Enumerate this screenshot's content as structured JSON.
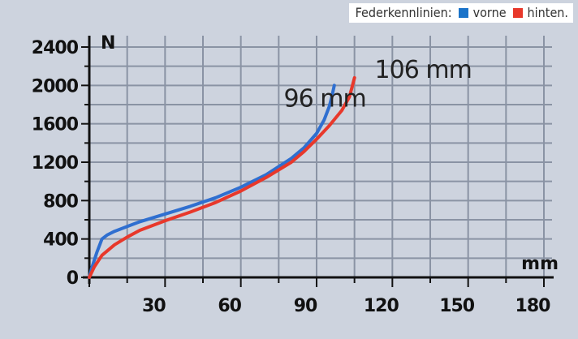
{
  "chart_data": {
    "type": "line",
    "title": "",
    "xlabel": "mm",
    "ylabel": "N",
    "xlim": [
      0,
      180
    ],
    "ylim": [
      0,
      2400
    ],
    "xticks": [
      30,
      60,
      90,
      120,
      150,
      180
    ],
    "yticks": [
      0,
      400,
      800,
      1200,
      1600,
      2000,
      2400
    ],
    "grid": true,
    "legend": {
      "position": "top-right",
      "title": "Federkennlinien:",
      "entries": [
        {
          "label": "vorne",
          "color": "#1a73c9"
        },
        {
          "label": "hinten.",
          "color": "#e8382b"
        }
      ]
    },
    "series": [
      {
        "name": "vorne",
        "color": "#2f6fd0",
        "points": [
          [
            0,
            0
          ],
          [
            1,
            100
          ],
          [
            3,
            260
          ],
          [
            5,
            400
          ],
          [
            7,
            440
          ],
          [
            10,
            480
          ],
          [
            15,
            530
          ],
          [
            20,
            580
          ],
          [
            30,
            660
          ],
          [
            40,
            740
          ],
          [
            50,
            830
          ],
          [
            60,
            940
          ],
          [
            70,
            1070
          ],
          [
            80,
            1240
          ],
          [
            85,
            1350
          ],
          [
            90,
            1500
          ],
          [
            93,
            1640
          ],
          [
            95,
            1780
          ],
          [
            96,
            1880
          ],
          [
            97,
            2000
          ]
        ]
      },
      {
        "name": "hinten.",
        "color": "#e8382b",
        "points": [
          [
            0,
            0
          ],
          [
            2,
            110
          ],
          [
            5,
            230
          ],
          [
            10,
            340
          ],
          [
            15,
            420
          ],
          [
            20,
            490
          ],
          [
            30,
            590
          ],
          [
            40,
            680
          ],
          [
            50,
            780
          ],
          [
            60,
            900
          ],
          [
            70,
            1040
          ],
          [
            80,
            1200
          ],
          [
            85,
            1310
          ],
          [
            90,
            1440
          ],
          [
            95,
            1580
          ],
          [
            100,
            1740
          ],
          [
            103,
            1880
          ],
          [
            104,
            1980
          ],
          [
            105,
            2080
          ]
        ]
      }
    ],
    "annotations": [
      {
        "text": "96 mm",
        "x": 77,
        "y": 1780
      },
      {
        "text": "106 mm",
        "x": 113,
        "y": 2080
      }
    ]
  }
}
